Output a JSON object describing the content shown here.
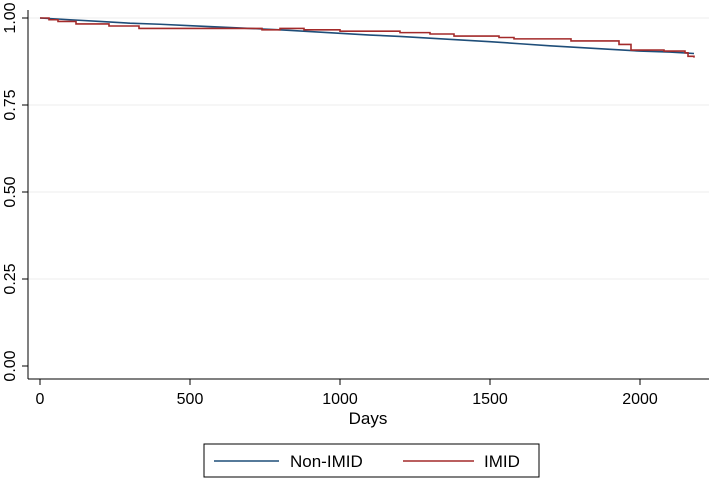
{
  "chart_data": {
    "type": "line",
    "title": "",
    "xlabel": "Days",
    "ylabel": "",
    "xlim": [
      0,
      2200
    ],
    "ylim": [
      0,
      1
    ],
    "x_ticks": [
      0,
      500,
      1000,
      1500,
      2000
    ],
    "x_tick_labels": [
      "0",
      "500",
      "1000",
      "1500",
      "2000"
    ],
    "y_ticks": [
      0,
      0.25,
      0.5,
      0.75,
      1
    ],
    "y_tick_labels": [
      "0.00",
      "0.25",
      "0.50",
      "0.75",
      "1.00"
    ],
    "grid": "horizontal",
    "legend_position": "bottom",
    "series": [
      {
        "name": "Non-IMID",
        "color": "#1f4e79",
        "step": false,
        "x": [
          0,
          100,
          200,
          300,
          400,
          500,
          600,
          700,
          800,
          900,
          1000,
          1100,
          1200,
          1300,
          1400,
          1500,
          1600,
          1700,
          1800,
          1900,
          2000,
          2100,
          2180
        ],
        "y": [
          1.0,
          0.995,
          0.99,
          0.985,
          0.982,
          0.978,
          0.974,
          0.97,
          0.966,
          0.961,
          0.956,
          0.951,
          0.947,
          0.942,
          0.937,
          0.932,
          0.926,
          0.92,
          0.915,
          0.91,
          0.905,
          0.902,
          0.898
        ]
      },
      {
        "name": "IMID",
        "color": "#a32a2a",
        "step": true,
        "x": [
          0,
          30,
          60,
          120,
          230,
          330,
          740,
          800,
          880,
          1000,
          1200,
          1300,
          1380,
          1530,
          1580,
          1770,
          1930,
          1970,
          2080,
          2150,
          2160,
          2180
        ],
        "y": [
          1.0,
          0.995,
          0.99,
          0.983,
          0.977,
          0.97,
          0.966,
          0.97,
          0.966,
          0.962,
          0.958,
          0.954,
          0.948,
          0.944,
          0.94,
          0.934,
          0.924,
          0.908,
          0.905,
          0.9,
          0.89,
          0.886
        ]
      }
    ]
  }
}
